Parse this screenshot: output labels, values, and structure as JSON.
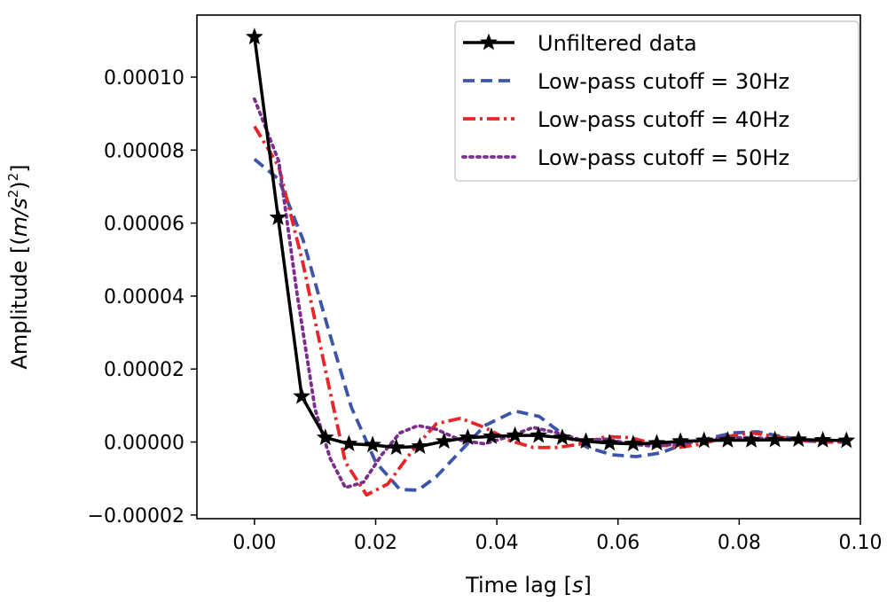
{
  "chart_data": {
    "type": "line",
    "title": "",
    "xlabel": "Time lag [",
    "xlabel_unit": "s",
    "ylabel": "Amplitude [(",
    "ylabel_unit": "m/s",
    "xlim": [
      -0.0095,
      0.1
    ],
    "ylim": [
      -2.1e-05,
      0.000117
    ],
    "x_ticks": [
      0.0,
      0.02,
      0.04,
      0.06,
      0.08,
      0.1
    ],
    "x_tick_labels": [
      "0.00",
      "0.02",
      "0.04",
      "0.06",
      "0.08",
      "0.10"
    ],
    "y_ticks": [
      -2e-05,
      0.0,
      2e-05,
      4e-05,
      6e-05,
      8e-05,
      0.0001
    ],
    "y_tick_labels": [
      "−0.00002",
      "0.00000",
      "0.00002",
      "0.00004",
      "0.00006",
      "0.00008",
      "0.00010"
    ],
    "grid": false,
    "legend_position": "top-right",
    "series": [
      {
        "name": "Unfiltered data",
        "color": "#000000",
        "style": "solid",
        "marker": "star",
        "points": [
          [
            0.0,
            0.000111
          ],
          [
            0.0039,
            6.15e-05
          ],
          [
            0.0078,
            1.25e-05
          ],
          [
            0.0117,
            1.2e-06
          ],
          [
            0.0156,
            -5e-07
          ],
          [
            0.0195,
            -8e-07
          ],
          [
            0.0234,
            -1.5e-06
          ],
          [
            0.0273,
            -1.2e-06
          ],
          [
            0.0313,
            2e-07
          ],
          [
            0.0352,
            1.2e-06
          ],
          [
            0.0391,
            1.5e-06
          ],
          [
            0.043,
            1.8e-06
          ],
          [
            0.0469,
            1.8e-06
          ],
          [
            0.0508,
            1.2e-06
          ],
          [
            0.0547,
            2e-07
          ],
          [
            0.0586,
            -3e-07
          ],
          [
            0.0625,
            -5e-07
          ],
          [
            0.0664,
            -3e-07
          ],
          [
            0.0703,
            2e-07
          ],
          [
            0.0742,
            4e-07
          ],
          [
            0.0781,
            5e-07
          ],
          [
            0.082,
            5e-07
          ],
          [
            0.0859,
            6e-07
          ],
          [
            0.0898,
            7e-07
          ],
          [
            0.0938,
            5e-07
          ],
          [
            0.0977,
            4e-07
          ]
        ]
      },
      {
        "name": "Low-pass cutoff = 30Hz",
        "color": "#3d55a6",
        "style": "dashed",
        "points": [
          [
            0.0,
            7.75e-05
          ],
          [
            0.004,
            7.2e-05
          ],
          [
            0.008,
            5.55e-05
          ],
          [
            0.012,
            3.2e-05
          ],
          [
            0.016,
            9.5e-06
          ],
          [
            0.02,
            -5.5e-06
          ],
          [
            0.024,
            -1.3e-05
          ],
          [
            0.027,
            -1.32e-05
          ],
          [
            0.03,
            -9.5e-06
          ],
          [
            0.034,
            -2.5e-06
          ],
          [
            0.038,
            4.5e-06
          ],
          [
            0.043,
            8.5e-06
          ],
          [
            0.047,
            7e-06
          ],
          [
            0.051,
            2e-06
          ],
          [
            0.055,
            -1.5e-06
          ],
          [
            0.059,
            -3.5e-06
          ],
          [
            0.063,
            -4e-06
          ],
          [
            0.067,
            -3e-06
          ],
          [
            0.071,
            -5e-07
          ],
          [
            0.075,
            1e-06
          ],
          [
            0.079,
            2.5e-06
          ],
          [
            0.083,
            2.8e-06
          ],
          [
            0.087,
            1.5e-06
          ],
          [
            0.091,
            3e-07
          ],
          [
            0.095,
            0.0
          ],
          [
            0.0977,
            0.0
          ]
        ]
      },
      {
        "name": "Low-pass cutoff = 40Hz",
        "color": "#e8262a",
        "style": "dashdot",
        "points": [
          [
            0.0,
            8.65e-05
          ],
          [
            0.004,
            7.55e-05
          ],
          [
            0.008,
            4.9e-05
          ],
          [
            0.012,
            1.75e-05
          ],
          [
            0.015,
            -5.5e-06
          ],
          [
            0.0185,
            -1.45e-05
          ],
          [
            0.022,
            -1.15e-05
          ],
          [
            0.026,
            -2.5e-06
          ],
          [
            0.03,
            5e-06
          ],
          [
            0.034,
            6.5e-06
          ],
          [
            0.038,
            4e-06
          ],
          [
            0.042,
            5e-07
          ],
          [
            0.046,
            -1.5e-06
          ],
          [
            0.05,
            -1.5e-06
          ],
          [
            0.054,
            -5e-07
          ],
          [
            0.058,
            1.5e-06
          ],
          [
            0.062,
            1.2e-06
          ],
          [
            0.066,
            -5e-07
          ],
          [
            0.07,
            -1.5e-06
          ],
          [
            0.074,
            -5e-07
          ],
          [
            0.078,
            1.5e-06
          ],
          [
            0.082,
            2.5e-06
          ],
          [
            0.086,
            1.5e-06
          ],
          [
            0.09,
            5e-07
          ],
          [
            0.094,
            0.0
          ],
          [
            0.0977,
            0.0
          ]
        ]
      },
      {
        "name": "Low-pass cutoff = 50Hz",
        "color": "#7b2f8a",
        "style": "dotted",
        "points": [
          [
            0.0,
            9.4e-05
          ],
          [
            0.004,
            7.7e-05
          ],
          [
            0.007,
            4.1e-05
          ],
          [
            0.01,
            9e-06
          ],
          [
            0.0125,
            -4.5e-06
          ],
          [
            0.015,
            -1.25e-05
          ],
          [
            0.018,
            -1.1e-05
          ],
          [
            0.021,
            -3.5e-06
          ],
          [
            0.024,
            2.5e-06
          ],
          [
            0.027,
            4.5e-06
          ],
          [
            0.03,
            3.5e-06
          ],
          [
            0.034,
            5e-07
          ],
          [
            0.038,
            -5e-07
          ],
          [
            0.042,
            1.5e-06
          ],
          [
            0.046,
            4e-06
          ],
          [
            0.05,
            2.5e-06
          ],
          [
            0.054,
            5e-07
          ],
          [
            0.058,
            8e-07
          ],
          [
            0.062,
            -5e-07
          ],
          [
            0.066,
            -1.2e-06
          ],
          [
            0.07,
            -5e-07
          ],
          [
            0.074,
            5e-07
          ],
          [
            0.078,
            1.2e-06
          ],
          [
            0.082,
            1.2e-06
          ],
          [
            0.086,
            8e-07
          ],
          [
            0.09,
            5e-07
          ],
          [
            0.0977,
            4e-07
          ]
        ]
      }
    ]
  }
}
